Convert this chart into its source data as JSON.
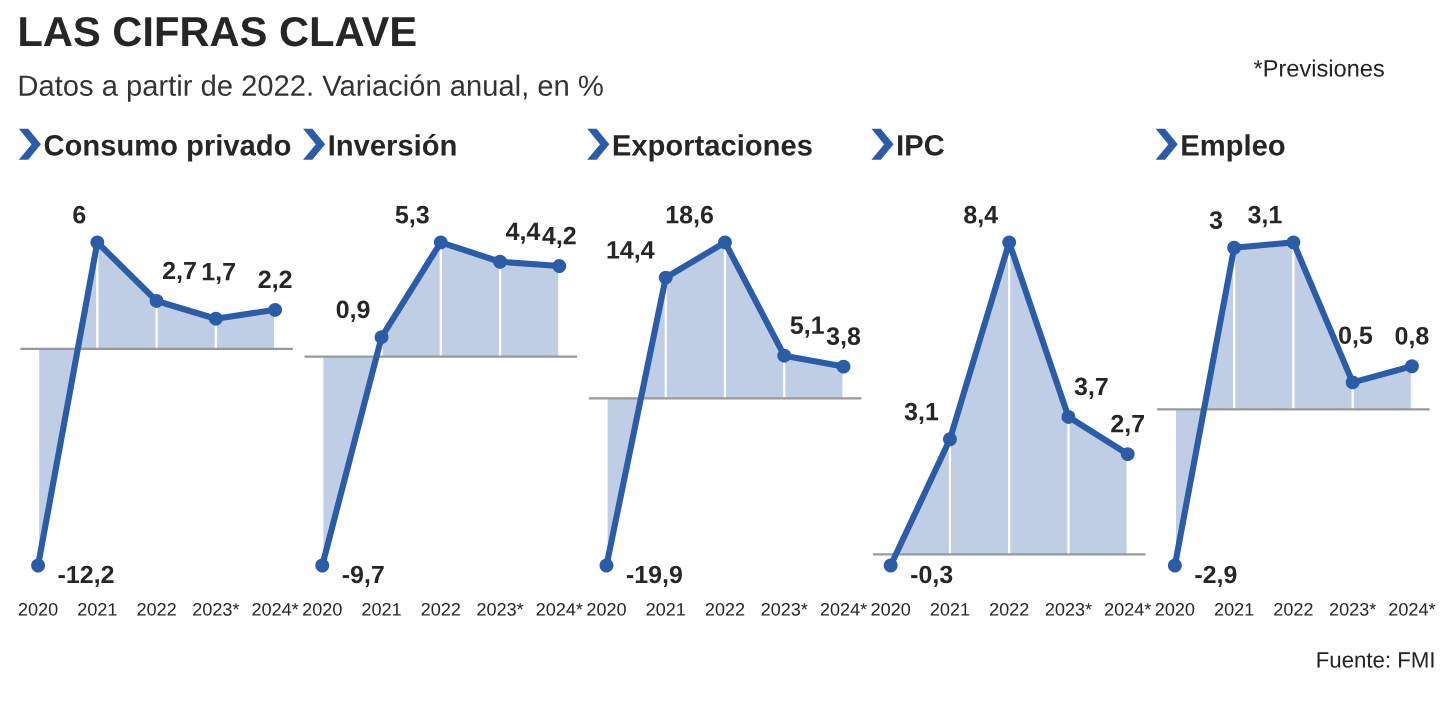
{
  "chart_data": [
    {
      "type": "area",
      "title": "Consumo privado",
      "categories": [
        "2020",
        "2021",
        "2022",
        "2023*",
        "2024*"
      ],
      "values": [
        -12.2,
        6,
        2.7,
        1.7,
        2.2
      ],
      "value_labels": [
        "-12,2",
        "6",
        "2,7",
        "1,7",
        "2,2"
      ],
      "color": "#2b5ca8",
      "marker": "circle"
    },
    {
      "type": "area",
      "title": "Inversión",
      "categories": [
        "2020",
        "2021",
        "2022",
        "2023*",
        "2024*"
      ],
      "values": [
        -9.7,
        0.9,
        5.3,
        4.4,
        4.2
      ],
      "value_labels": [
        "-9,7",
        "0,9",
        "5,3",
        "4,4",
        "4,2"
      ],
      "color": "#2b5ca8",
      "marker": "circle"
    },
    {
      "type": "area",
      "title": "Exportaciones",
      "categories": [
        "2020",
        "2021",
        "2022",
        "2023*",
        "2024*"
      ],
      "values": [
        -19.9,
        14.4,
        18.6,
        5.1,
        3.8
      ],
      "value_labels": [
        "-19,9",
        "14,4",
        "18,6",
        "5,1",
        "3,8"
      ],
      "color": "#2b5ca8",
      "marker": "circle"
    },
    {
      "type": "area",
      "title": "IPC",
      "categories": [
        "2020",
        "2021",
        "2022",
        "2023*",
        "2024*"
      ],
      "values": [
        -0.3,
        3.1,
        8.4,
        3.7,
        2.7
      ],
      "value_labels": [
        "-0,3",
        "3,1",
        "8,4",
        "3,7",
        "2,7"
      ],
      "color": "#2b5ca8",
      "marker": "circle"
    },
    {
      "type": "area",
      "title": "Empleo",
      "categories": [
        "2020",
        "2021",
        "2022",
        "2023*",
        "2024*"
      ],
      "values": [
        -2.9,
        3,
        3.1,
        0.5,
        0.8
      ],
      "value_labels": [
        "-2,9",
        "3",
        "3,1",
        "0,5",
        "0,8"
      ],
      "color": "#2b5ca8",
      "marker": "circle"
    },
    {
      "type": "other",
      "title": "LAS CIFRAS CLAVE",
      "subtitle": "Datos a partir de 2022. Variación anual, en %",
      "annotations": [
        "*Previsiones",
        "Fuente: FMI"
      ]
    }
  ]
}
